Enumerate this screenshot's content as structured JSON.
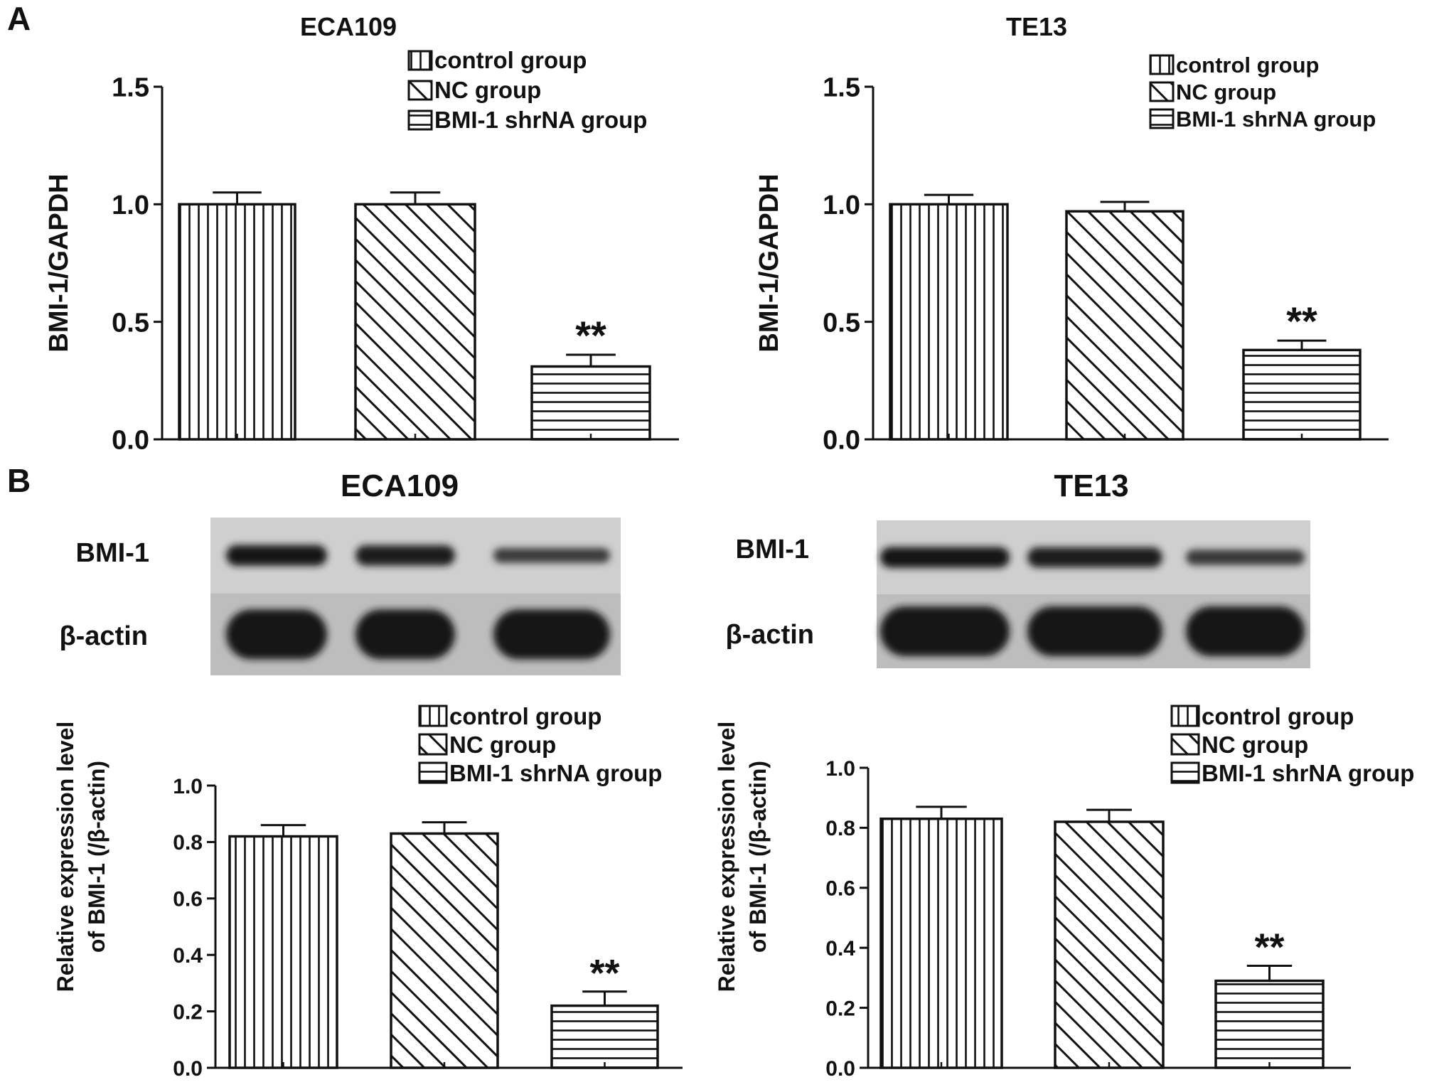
{
  "panels": {
    "a_letter": "A",
    "b_letter": "B"
  },
  "legend_labels": [
    "control group",
    "NC group",
    "BMI-1 shrNA group"
  ],
  "blots": [
    {
      "title": "ECA109",
      "row_labels": [
        "BMI-1",
        "β-actin"
      ],
      "band_intensity": [
        [
          0.95,
          0.92,
          0.45
        ],
        [
          1.0,
          1.0,
          1.0
        ]
      ]
    },
    {
      "title": "TE13",
      "row_labels": [
        "BMI-1",
        "β-actin"
      ],
      "band_intensity": [
        [
          0.95,
          0.9,
          0.5
        ],
        [
          1.0,
          1.0,
          1.0
        ]
      ]
    }
  ],
  "chart_data": [
    {
      "type": "bar",
      "title": "ECA109",
      "ylabel": "BMI-1/GAPDH",
      "ylabel2": "",
      "ylim": [
        0,
        1.5
      ],
      "yticks": [
        "0.0",
        "0.5",
        "1.0",
        "1.5"
      ],
      "categories": [
        "control group",
        "NC group",
        "BMI-1 shRNA group"
      ],
      "values": [
        1.0,
        1.0,
        0.31
      ],
      "errors": [
        0.05,
        0.05,
        0.05
      ],
      "annotations": [
        "",
        "",
        "**"
      ],
      "legend": "top-right"
    },
    {
      "type": "bar",
      "title": "TE13",
      "ylabel": "BMI-1/GAPDH",
      "ylabel2": "",
      "ylim": [
        0,
        1.5
      ],
      "yticks": [
        "0.0",
        "0.5",
        "1.0",
        "1.5"
      ],
      "categories": [
        "control group",
        "NC group",
        "BMI-1 shRNA group"
      ],
      "values": [
        1.0,
        0.97,
        0.38
      ],
      "errors": [
        0.04,
        0.04,
        0.04
      ],
      "annotations": [
        "",
        "",
        "**"
      ],
      "legend": "top-right"
    },
    {
      "type": "bar",
      "title": "",
      "ylabel": "Relative expression level",
      "ylabel2": "of BMI-1 (/β-actin)",
      "ylim": [
        0,
        1.0
      ],
      "yticks": [
        "0.0",
        "0.2",
        "0.4",
        "0.6",
        "0.8",
        "1.0"
      ],
      "categories": [
        "control group",
        "NC group",
        "BMI-1 shRNA group"
      ],
      "values": [
        0.82,
        0.83,
        0.22
      ],
      "errors": [
        0.04,
        0.04,
        0.05
      ],
      "annotations": [
        "",
        "",
        "**"
      ],
      "legend": "top-right"
    },
    {
      "type": "bar",
      "title": "",
      "ylabel": "Relative expression level",
      "ylabel2": "of BMI-1 (/β-actin)",
      "ylim": [
        0,
        1.0
      ],
      "yticks": [
        "0.0",
        "0.2",
        "0.4",
        "0.6",
        "0.8",
        "1.0"
      ],
      "categories": [
        "control group",
        "NC group",
        "BMI-1 shRNA group"
      ],
      "values": [
        0.83,
        0.82,
        0.29
      ],
      "errors": [
        0.04,
        0.04,
        0.05
      ],
      "annotations": [
        "",
        "",
        "**"
      ],
      "legend": "top-right"
    }
  ]
}
